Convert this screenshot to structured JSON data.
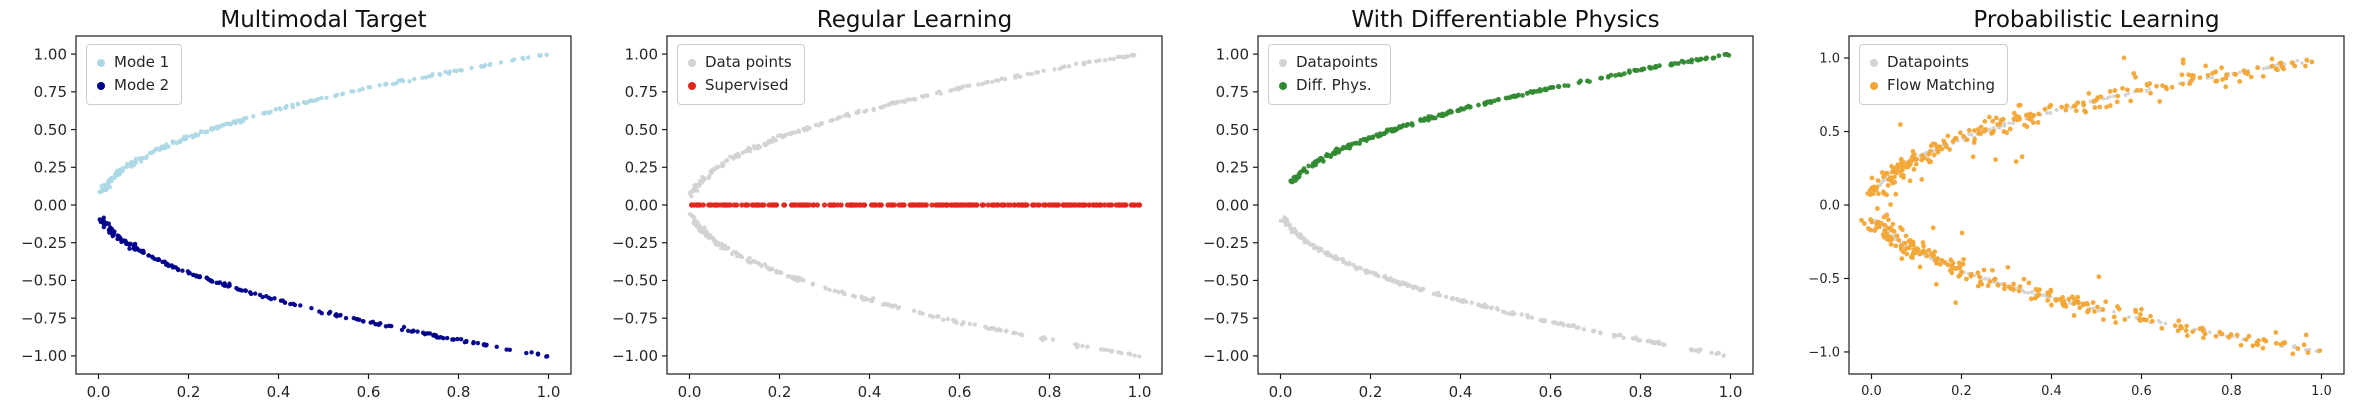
{
  "figure": {
    "background": "#ffffff",
    "spine_color": "#1a1a1a",
    "tick_color": "#262626"
  },
  "chart_data": [
    {
      "type": "scatter",
      "title": "Multimodal Target",
      "xlabel": "",
      "ylabel": "",
      "curve_equation": "y^2 = x (two branches of a square-root curve)",
      "xlim": [
        -0.05,
        1.05
      ],
      "ylim": [
        -1.12,
        1.12
      ],
      "x_tick_values": [
        0,
        0.2,
        0.4,
        0.6,
        0.8,
        1.0
      ],
      "x_tick_labels": [
        "0.0",
        "0.2",
        "0.4",
        "0.6",
        "0.8",
        "1.0"
      ],
      "y_tick_values": [
        1,
        0.75,
        0.5,
        0.25,
        0,
        -0.25,
        -0.5,
        -0.75,
        -1
      ],
      "y_tick_labels": [
        "1.00",
        "0.75",
        "0.50",
        "0.25",
        "0.00",
        "−0.25",
        "−0.50",
        "−0.75",
        "−1.00"
      ],
      "tick_font_size": 15,
      "grid": false,
      "legend": {
        "position": "upper-left",
        "entries": [
          {
            "label": "Mode 1",
            "color": "#ADD8E6"
          },
          {
            "label": "Mode 2",
            "color": "#00008B"
          }
        ]
      },
      "series": [
        {
          "name": "Mode 1",
          "color": "#ADD8E6",
          "marker_radius": 2.2,
          "generator": {
            "curve": "x=y^2",
            "branch": "upper",
            "t_min": 0.08,
            "n": 210,
            "noise_x": 0.004,
            "noise_y": 0.004,
            "seed": 11
          }
        },
        {
          "name": "Mode 2",
          "color": "#00008B",
          "marker_radius": 2.2,
          "generator": {
            "curve": "x=y^2",
            "branch": "lower",
            "t_min": 0.08,
            "n": 210,
            "noise_x": 0.004,
            "noise_y": 0.004,
            "seed": 22
          }
        }
      ]
    },
    {
      "type": "scatter",
      "title": "Regular Learning",
      "xlabel": "",
      "ylabel": "",
      "curve_equation": "data: y^2 = x; supervised prediction collapses to y = 0",
      "xlim": [
        -0.05,
        1.05
      ],
      "ylim": [
        -1.12,
        1.12
      ],
      "x_tick_values": [
        0,
        0.2,
        0.4,
        0.6,
        0.8,
        1.0
      ],
      "x_tick_labels": [
        "0.0",
        "0.2",
        "0.4",
        "0.6",
        "0.8",
        "1.0"
      ],
      "y_tick_values": [
        1,
        0.75,
        0.5,
        0.25,
        0,
        -0.25,
        -0.5,
        -0.75,
        -1
      ],
      "y_tick_labels": [
        "1.00",
        "0.75",
        "0.50",
        "0.25",
        "0.00",
        "−0.25",
        "−0.50",
        "−0.75",
        "−1.00"
      ],
      "tick_font_size": 15,
      "grid": false,
      "legend": {
        "position": "upper-left",
        "entries": [
          {
            "label": "Data points",
            "color": "#D3D3D3"
          },
          {
            "label": "Supervised",
            "color": "#E3261C"
          }
        ]
      },
      "series": [
        {
          "name": "Data points (upper)",
          "color": "#D3D3D3",
          "marker_radius": 2.2,
          "generator": {
            "curve": "x=y^2",
            "branch": "upper",
            "t_min": 0.06,
            "n": 200,
            "noise_x": 0.004,
            "noise_y": 0.004,
            "seed": 31
          }
        },
        {
          "name": "Data points (lower)",
          "color": "#D3D3D3",
          "marker_radius": 2.2,
          "generator": {
            "curve": "x=y^2",
            "branch": "lower",
            "t_min": 0.06,
            "n": 200,
            "noise_x": 0.004,
            "noise_y": 0.004,
            "seed": 32
          }
        },
        {
          "name": "Supervised",
          "color": "#E3261C",
          "marker_radius": 2.6,
          "generator": {
            "curve": "y=0",
            "branch": "flat",
            "t_min": 0.0,
            "n": 280,
            "noise_x": 0.0,
            "noise_y": 0.0,
            "seed": 33
          }
        }
      ]
    },
    {
      "type": "scatter",
      "title": "With Differentiable Physics",
      "xlabel": "",
      "ylabel": "",
      "curve_equation": "diff. physics solution follows y = +sqrt(x); data on y = -sqrt(x)",
      "xlim": [
        -0.05,
        1.05
      ],
      "ylim": [
        -1.12,
        1.12
      ],
      "x_tick_values": [
        0,
        0.2,
        0.4,
        0.6,
        0.8,
        1.0
      ],
      "x_tick_labels": [
        "0.0",
        "0.2",
        "0.4",
        "0.6",
        "0.8",
        "1.0"
      ],
      "y_tick_values": [
        1,
        0.75,
        0.5,
        0.25,
        0,
        -0.25,
        -0.5,
        -0.75,
        -1
      ],
      "y_tick_labels": [
        "1.00",
        "0.75",
        "0.50",
        "0.25",
        "0.00",
        "−0.25",
        "−0.50",
        "−0.75",
        "−1.00"
      ],
      "tick_font_size": 15,
      "grid": false,
      "legend": {
        "position": "upper-left",
        "entries": [
          {
            "label": "Datapoints",
            "color": "#D3D3D3"
          },
          {
            "label": "Diff. Phys.",
            "color": "#338A33"
          }
        ]
      },
      "series": [
        {
          "name": "Datapoints",
          "color": "#D3D3D3",
          "marker_radius": 2.2,
          "generator": {
            "curve": "x=y^2",
            "branch": "lower",
            "t_min": 0.08,
            "n": 230,
            "noise_x": 0.004,
            "noise_y": 0.004,
            "seed": 41
          }
        },
        {
          "name": "Diff. Phys.",
          "color": "#338A33",
          "marker_radius": 2.4,
          "generator": {
            "curve": "x=y^2",
            "branch": "upper",
            "t_min": 0.15,
            "n": 240,
            "noise_x": 0.004,
            "noise_y": 0.004,
            "seed": 42
          }
        }
      ]
    },
    {
      "type": "scatter",
      "title": "Probabilistic Learning",
      "xlabel": "",
      "ylabel": "",
      "curve_equation": "flow-matching samples scatter noisily around both branches of y^2 = x",
      "xlim": [
        -0.05,
        1.05
      ],
      "ylim": [
        -1.15,
        1.15
      ],
      "x_tick_values": [
        0,
        0.2,
        0.4,
        0.6,
        0.8,
        1.0
      ],
      "x_tick_labels": [
        "0.0",
        "0.2",
        "0.4",
        "0.6",
        "0.8",
        "1.0"
      ],
      "y_tick_values": [
        1,
        0.5,
        0,
        -0.5,
        -1
      ],
      "y_tick_labels": [
        "1.0",
        "0.5",
        "0.0",
        "−0.5",
        "−1.0"
      ],
      "tick_font_size": 13,
      "grid": false,
      "legend": {
        "position": "upper-left",
        "entries": [
          {
            "label": "Datapoints",
            "color": "#D3D3D3"
          },
          {
            "label": "Flow Matching",
            "color": "#F2A636"
          }
        ]
      },
      "series": [
        {
          "name": "Datapoints (upper)",
          "color": "#D3D3D3",
          "marker_radius": 1.8,
          "generator": {
            "curve": "x=y^2",
            "branch": "upper",
            "t_min": 0.1,
            "n": 130,
            "noise_x": 0.004,
            "noise_y": 0.004,
            "seed": 51
          }
        },
        {
          "name": "Datapoints (lower)",
          "color": "#D3D3D3",
          "marker_radius": 1.8,
          "generator": {
            "curve": "x=y^2",
            "branch": "lower",
            "t_min": 0.1,
            "n": 130,
            "noise_x": 0.004,
            "noise_y": 0.004,
            "seed": 52
          }
        },
        {
          "name": "Flow Matching (upper)",
          "color": "#F2A636",
          "marker_radius": 2.4,
          "generator": {
            "curve": "x=y^2",
            "branch": "upper",
            "t_min": 0.08,
            "n": 240,
            "noise_x": 0.015,
            "noise_y": 0.03,
            "outlier_frac": 0.08,
            "outlier_sigma": 0.09,
            "seed": 53
          }
        },
        {
          "name": "Flow Matching (lower)",
          "color": "#F2A636",
          "marker_radius": 2.4,
          "generator": {
            "curve": "x=y^2",
            "branch": "lower",
            "t_min": 0.08,
            "n": 240,
            "noise_x": 0.015,
            "noise_y": 0.03,
            "outlier_frac": 0.08,
            "outlier_sigma": 0.09,
            "seed": 54
          }
        }
      ]
    }
  ]
}
